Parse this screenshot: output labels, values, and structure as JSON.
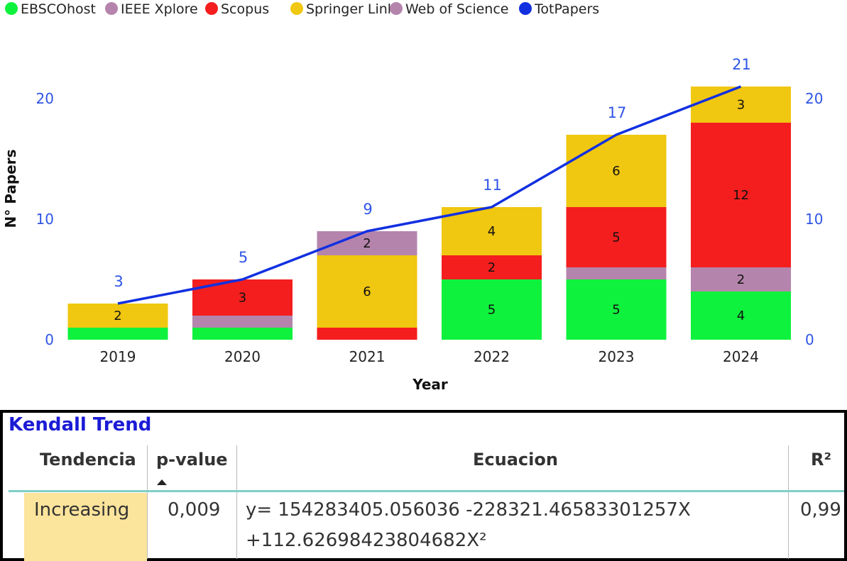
{
  "chart_data": {
    "type": "bar",
    "stacked": true,
    "xlabel": "Year",
    "ylabel": "N° Papers",
    "ylim": [
      0,
      20
    ],
    "yticks": [
      0,
      10,
      20
    ],
    "grid": false,
    "legend_position": "top-left",
    "categories": [
      "2019",
      "2020",
      "2021",
      "2022",
      "2023",
      "2024"
    ],
    "series": [
      {
        "name": "EBSCOhost",
        "color": "#0ff23d",
        "values": [
          1,
          1,
          0,
          5,
          5,
          4
        ],
        "labels": [
          "",
          "",
          "",
          "5",
          "5",
          "4"
        ]
      },
      {
        "name": "IEEE Xplore",
        "color": "#b584ac",
        "values": [
          0,
          1,
          0,
          0,
          1,
          2
        ],
        "labels": [
          "",
          "",
          "",
          "",
          "",
          "2"
        ]
      },
      {
        "name": "Scopus",
        "color": "#f41e1e",
        "values": [
          0,
          3,
          1,
          2,
          5,
          12
        ],
        "labels": [
          "",
          "3",
          "",
          "2",
          "5",
          "12"
        ]
      },
      {
        "name": "Springer Link",
        "color": "#f0c711",
        "values": [
          2,
          0,
          6,
          4,
          6,
          3
        ],
        "labels": [
          "2",
          "",
          "6",
          "4",
          "6",
          "3"
        ]
      },
      {
        "name": "Web of Science",
        "color": "#b584ac",
        "values": [
          0,
          0,
          2,
          0,
          0,
          0
        ],
        "labels": [
          "",
          "",
          "2",
          "",
          "",
          ""
        ]
      }
    ],
    "line_series": {
      "name": "TotPapers",
      "color": "#1230e0",
      "values": [
        3,
        5,
        9,
        11,
        17,
        21
      ],
      "labels": [
        "3",
        "5",
        "9",
        "11",
        "17",
        "21"
      ]
    }
  },
  "kendall": {
    "title": "Kendall Trend",
    "headers": {
      "trend": "Tendencia",
      "pvalue": "p-value",
      "equation": "Ecuacion",
      "r2": "R²"
    },
    "row": {
      "trend": "Increasing",
      "pvalue": "0,009",
      "equation_line1": "y= 154283405.056036 -228321.46583301257X",
      "equation_line2": "+112.62698423804682X²",
      "r2": "0,99"
    },
    "colors": {
      "title": "#1b1bd6",
      "highlight": "#fbe49b",
      "rule": "#7ed0c6"
    }
  }
}
